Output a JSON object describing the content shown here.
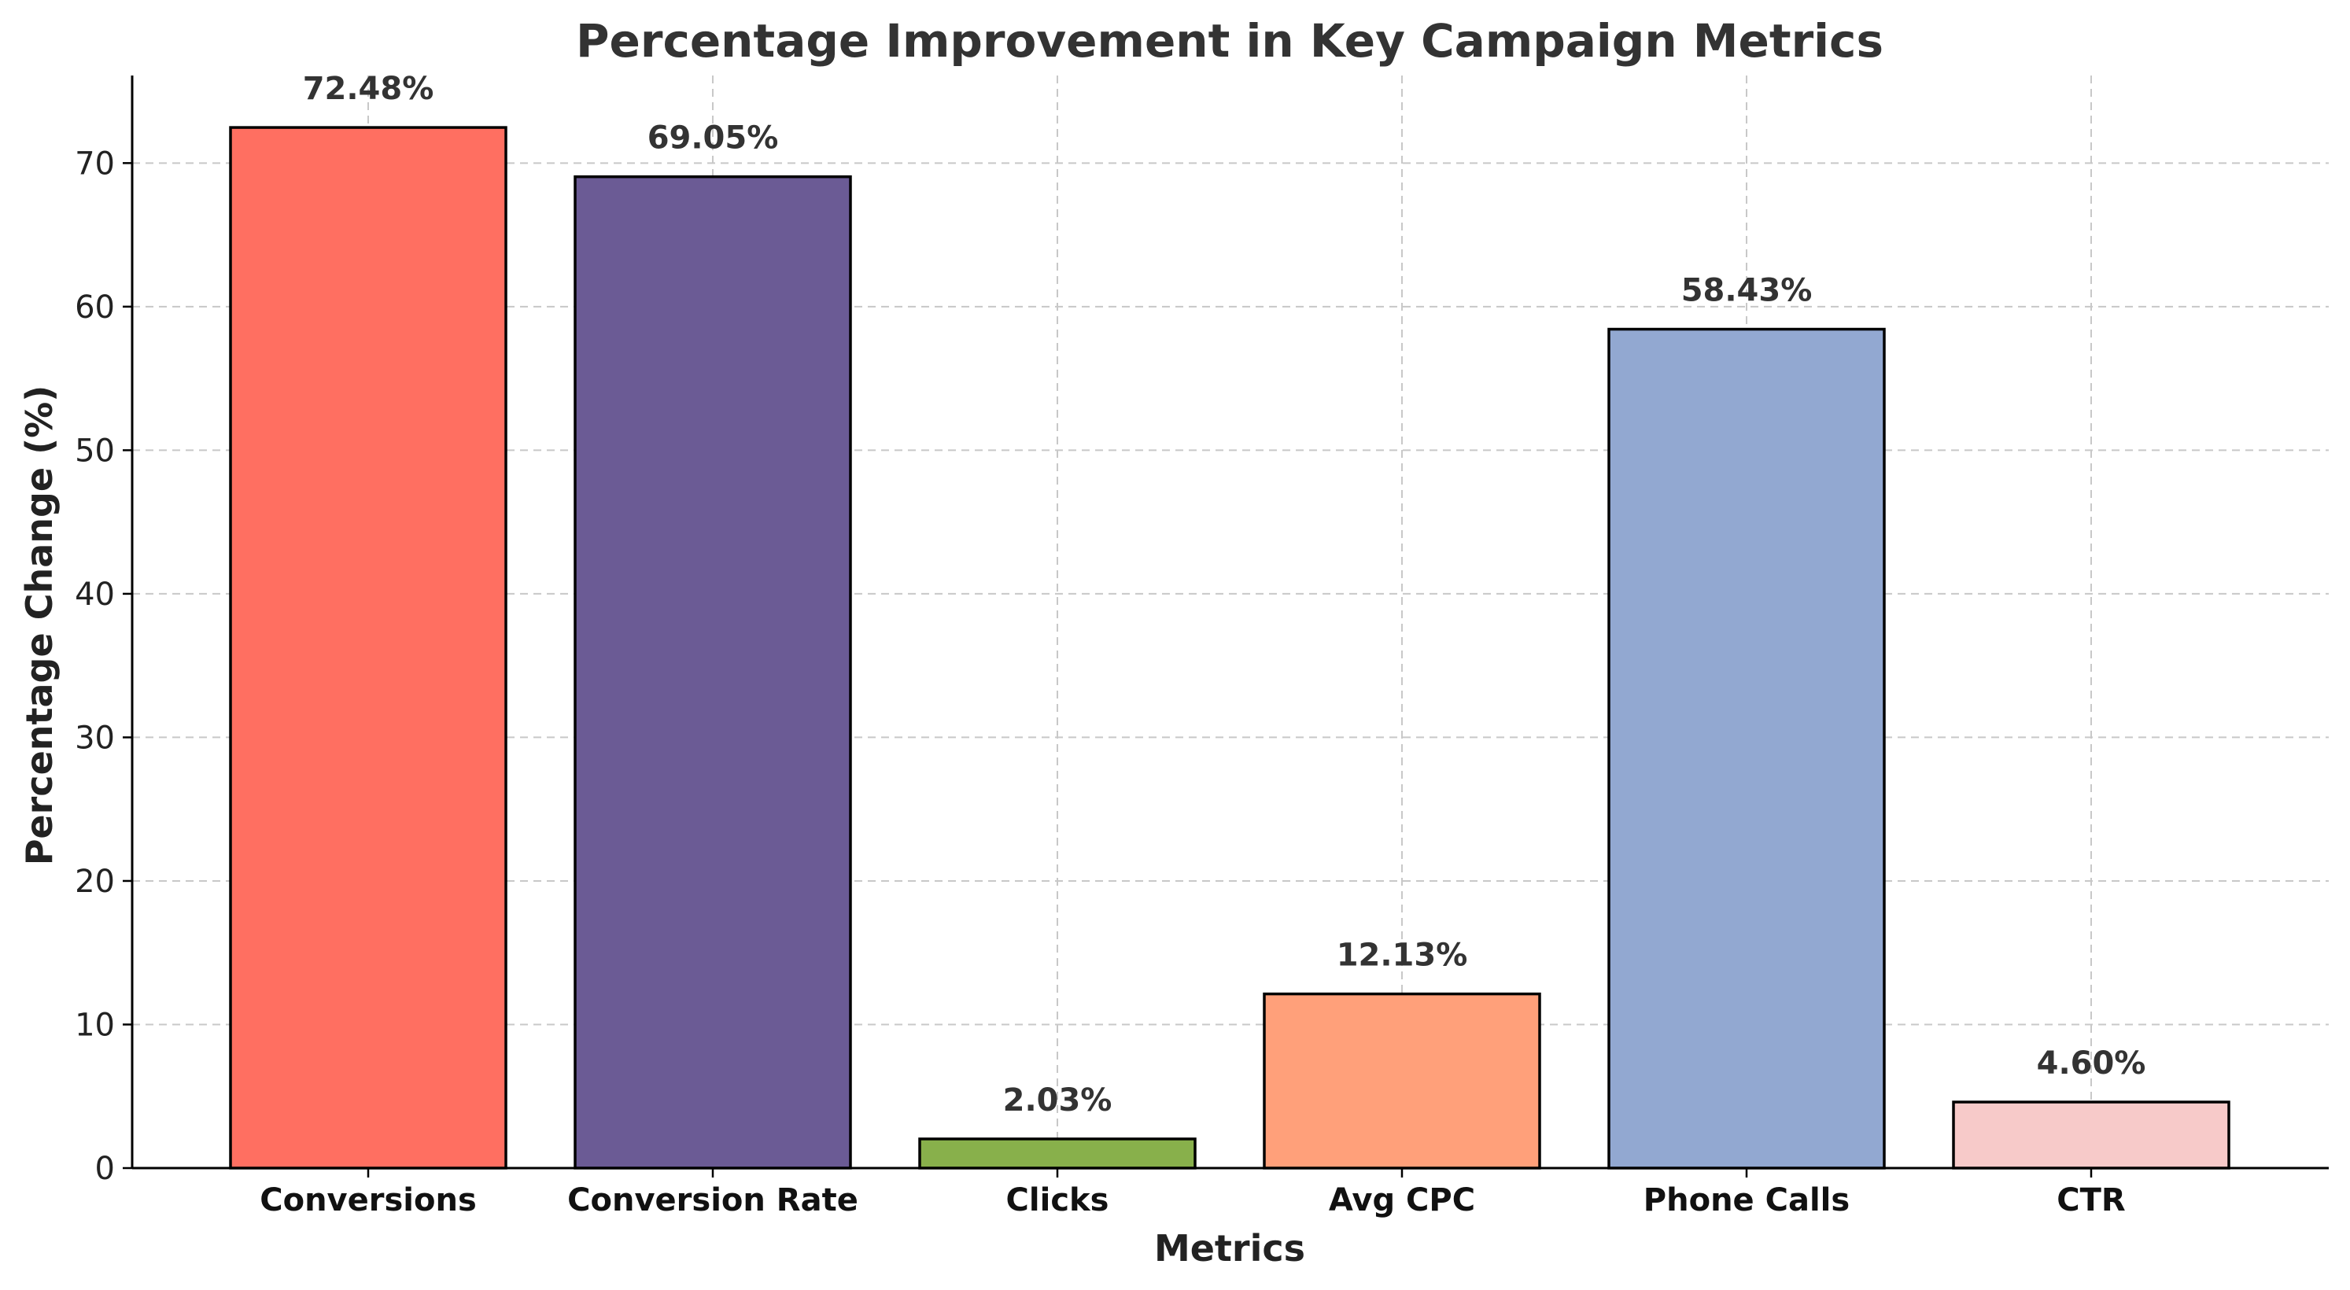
{
  "chart_data": {
    "type": "bar",
    "title": "Percentage Improvement in Key Campaign Metrics",
    "xlabel": "Metrics",
    "ylabel": "Percentage Change (%)",
    "categories": [
      "Conversions",
      "Conversion Rate",
      "Clicks",
      "Avg CPC",
      "Phone Calls",
      "CTR"
    ],
    "values": [
      72.48,
      69.05,
      2.03,
      12.13,
      58.43,
      4.6
    ],
    "value_labels": [
      "72.48%",
      "69.05%",
      "2.03%",
      "12.13%",
      "58.43%",
      "4.60%"
    ],
    "colors": [
      "#ff6f61",
      "#6b5b95",
      "#88b04b",
      "#ffa07a",
      "#92a8d1",
      "#f7cac9"
    ],
    "ylim": [
      0,
      76.1
    ],
    "yticks": [
      0,
      10,
      20,
      30,
      40,
      50,
      60,
      70
    ],
    "grid": true,
    "legend": "none"
  }
}
